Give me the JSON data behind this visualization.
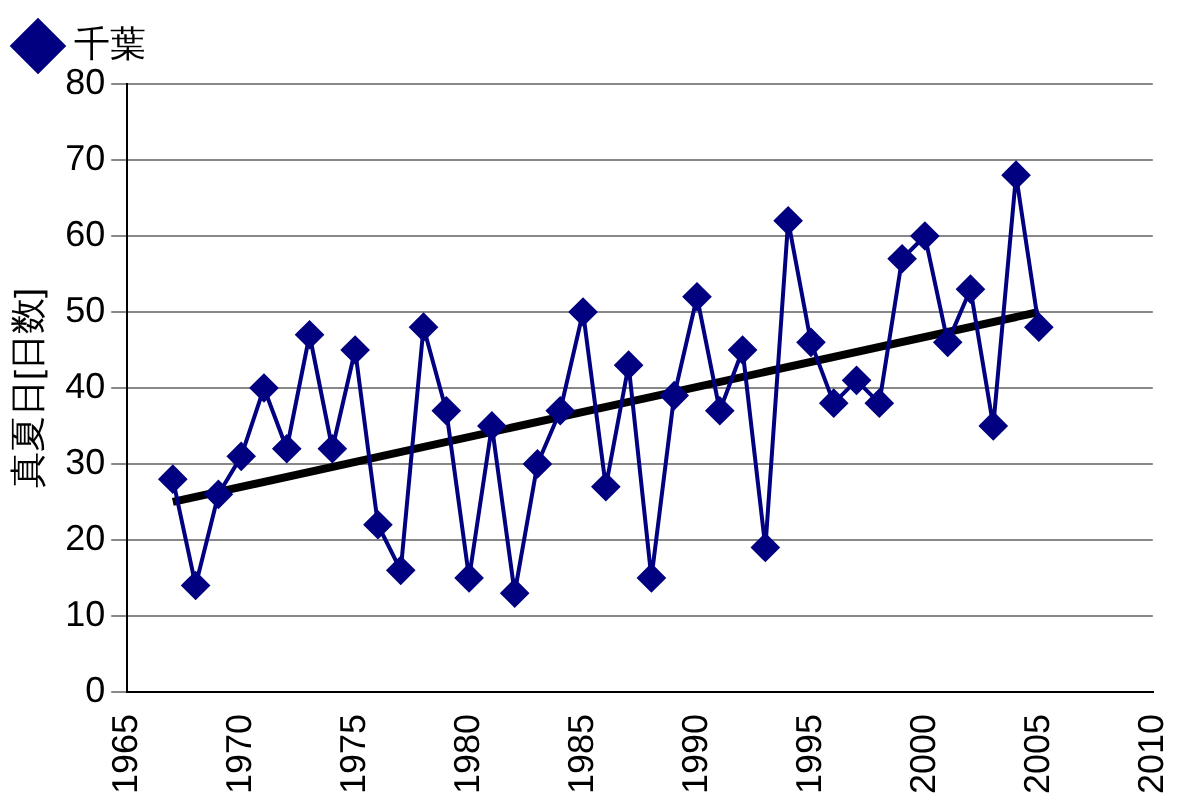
{
  "chart_data": {
    "type": "line",
    "ylabel": "真夏日[日数]",
    "x": [
      1967,
      1968,
      1969,
      1970,
      1971,
      1972,
      1973,
      1974,
      1975,
      1976,
      1977,
      1978,
      1979,
      1980,
      1981,
      1982,
      1983,
      1984,
      1985,
      1986,
      1987,
      1988,
      1989,
      1990,
      1991,
      1992,
      1993,
      1994,
      1995,
      1996,
      1997,
      1998,
      1999,
      2000,
      2001,
      2002,
      2003,
      2004,
      2005
    ],
    "series": [
      {
        "name": "千葉",
        "color": "#000080",
        "marker": "diamond",
        "values": [
          28,
          14,
          26,
          31,
          40,
          32,
          47,
          32,
          45,
          22,
          16,
          48,
          37,
          15,
          35,
          13,
          30,
          37,
          50,
          27,
          43,
          15,
          39,
          52,
          37,
          45,
          19,
          62,
          46,
          38,
          41,
          38,
          57,
          60,
          46,
          53,
          35,
          68,
          48
        ]
      },
      {
        "type": "line",
        "color": "#000000",
        "marker": "none",
        "x": [
          1967,
          2005
        ],
        "values": [
          25,
          50
        ]
      }
    ],
    "xlim": [
      1965,
      2010
    ],
    "xticks": [
      1965,
      1970,
      1975,
      1980,
      1985,
      1990,
      1995,
      2000,
      2005,
      2010
    ],
    "ylim": [
      0,
      80
    ],
    "yticks": [
      0,
      10,
      20,
      30,
      40,
      50,
      60,
      70,
      80
    ],
    "grid": "y",
    "legend": "top left"
  }
}
